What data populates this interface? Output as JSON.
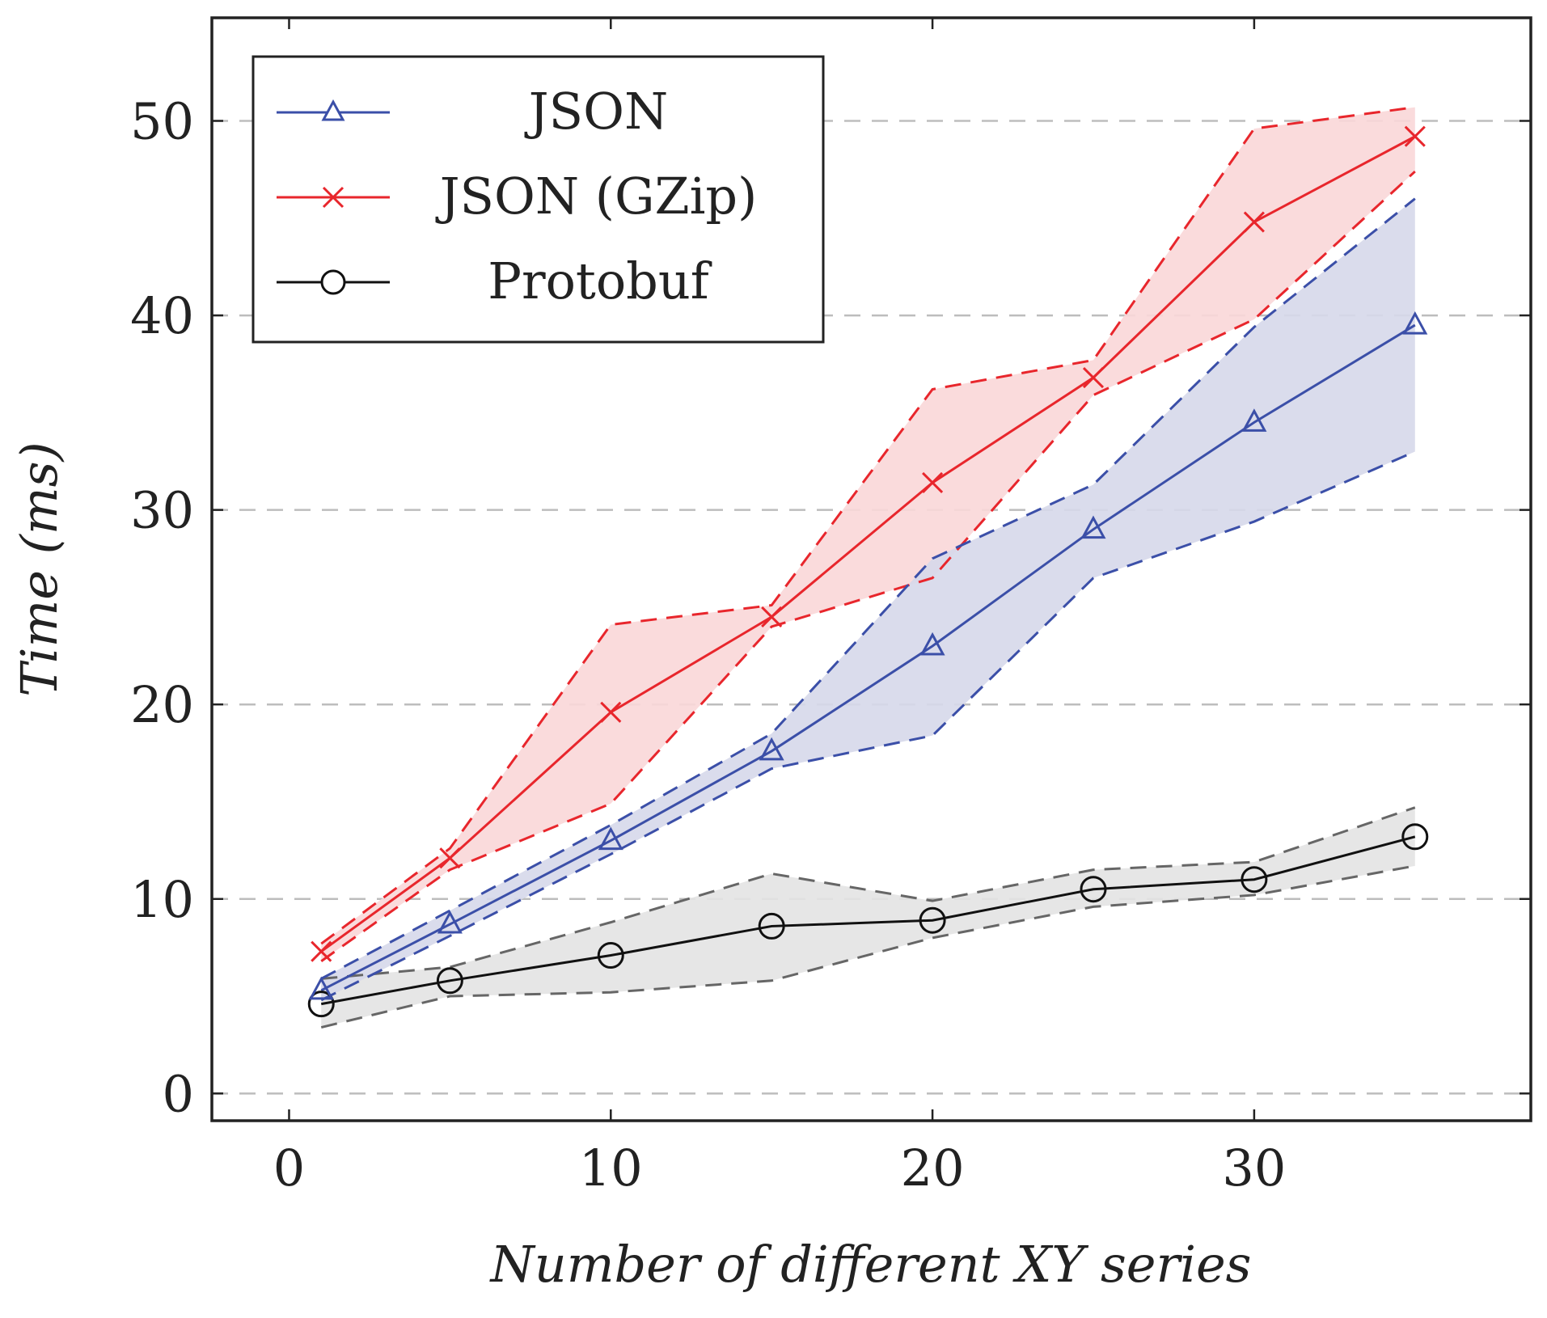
{
  "chart_data": {
    "type": "line",
    "xlabel": "Number of different XY series",
    "ylabel_main": "Time",
    "ylabel_unit": "(ms)",
    "xlim": [
      -2.4,
      38.6
    ],
    "ylim": [
      -1.4,
      55.3
    ],
    "xticks": [
      0,
      10,
      20,
      30
    ],
    "yticks": [
      0,
      10,
      20,
      30,
      40,
      50
    ],
    "grid": "horizontal dashed",
    "legend_position": "top-left",
    "x": [
      1,
      5,
      10,
      15,
      20,
      25,
      30,
      35
    ],
    "series": [
      {
        "name": "JSON",
        "color": "#3b4fa8",
        "fill": "#d6d8ea",
        "marker": "triangle",
        "values": [
          5.3,
          8.7,
          13.0,
          17.6,
          23.0,
          29.0,
          34.5,
          39.5
        ],
        "upper": [
          5.9,
          9.4,
          13.8,
          18.5,
          27.5,
          31.3,
          39.4,
          46.0
        ],
        "lower": [
          4.8,
          8.1,
          12.3,
          16.7,
          18.4,
          26.5,
          29.4,
          33.0
        ]
      },
      {
        "name": "JSON (GZip)",
        "color": "#e8262c",
        "fill": "#fad7d8",
        "marker": "cross",
        "values": [
          7.3,
          12.1,
          19.6,
          24.5,
          31.4,
          36.8,
          44.8,
          49.2
        ],
        "upper": [
          7.7,
          12.6,
          24.1,
          25.1,
          36.2,
          37.7,
          49.6,
          50.7
        ],
        "lower": [
          6.8,
          11.5,
          14.9,
          24.0,
          26.5,
          35.9,
          39.8,
          47.4
        ]
      },
      {
        "name": "Protobuf",
        "color": "#111111",
        "fill": "#e3e3e3",
        "marker": "circle",
        "values": [
          4.6,
          5.8,
          7.1,
          8.6,
          8.9,
          10.5,
          11.0,
          13.2
        ],
        "upper": [
          5.9,
          6.5,
          8.8,
          11.3,
          9.9,
          11.5,
          11.9,
          14.7
        ],
        "lower": [
          3.4,
          5.0,
          5.2,
          5.8,
          8.0,
          9.6,
          10.2,
          11.7
        ]
      }
    ]
  }
}
